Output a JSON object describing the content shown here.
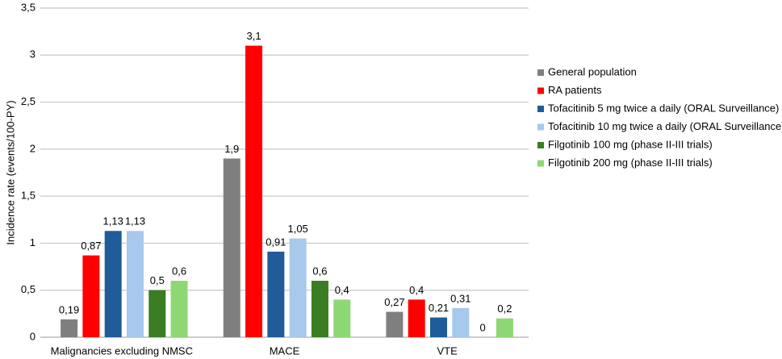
{
  "chart_data": {
    "type": "bar",
    "y_label": "Incidence rate (events/100-PY)",
    "categories": [
      "Malignancies excluding NMSC",
      "MACE",
      "VTE"
    ],
    "series": [
      {
        "name": "General population",
        "color": "#7f7f7f",
        "values": [
          0.19,
          1.9,
          0.27
        ],
        "value_labels": [
          "0,19",
          "1,9",
          "0,27"
        ]
      },
      {
        "name": "RA patients",
        "color": "#ff0000",
        "values": [
          0.87,
          3.1,
          0.4
        ],
        "value_labels": [
          "0,87",
          "3,1",
          "0,4"
        ]
      },
      {
        "name": "Tofacitinib 5 mg twice a daily (ORAL Surveillance)",
        "color": "#1f5c99",
        "values": [
          1.13,
          0.91,
          0.21
        ],
        "value_labels": [
          "1,13",
          "0,91",
          "0,21"
        ]
      },
      {
        "name": "Tofacitinib 10 mg twice a daily (ORAL Surveillance)",
        "color": "#a6c9ec",
        "values": [
          1.13,
          1.05,
          0.31
        ],
        "value_labels": [
          "1,13",
          "1,05",
          "0,31"
        ]
      },
      {
        "name": "Filgotinib 100 mg (phase II-III trials)",
        "color": "#3a7d22",
        "values": [
          0.5,
          0.6,
          0
        ],
        "value_labels": [
          "0,5",
          "0,6",
          "0"
        ]
      },
      {
        "name": "Filgotinib 200 mg (phase II-III trials)",
        "color": "#8ed873",
        "values": [
          0.6,
          0.4,
          0.2
        ],
        "value_labels": [
          "0,6",
          "0,4",
          "0,2"
        ]
      }
    ],
    "ylim": [
      0,
      3.5
    ],
    "yticks": [
      0,
      {
        "value": 0.5,
        "label": "0,5"
      },
      1,
      {
        "value": 1.5,
        "label": "1,5"
      },
      2,
      {
        "value": 2.5,
        "label": "2,5"
      },
      3,
      {
        "value": 3.5,
        "label": "3,5"
      }
    ],
    "grid": true,
    "legend": "right"
  }
}
